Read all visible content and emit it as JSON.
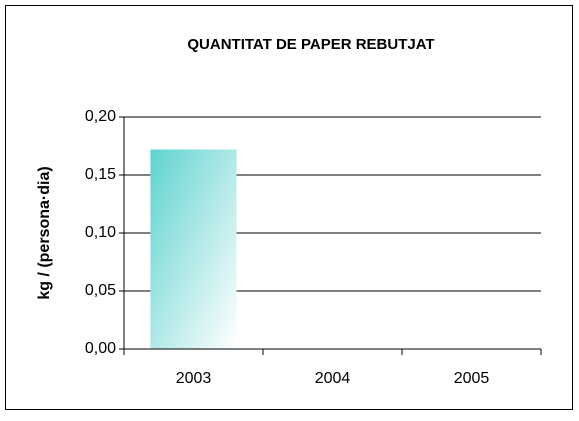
{
  "chart_data": {
    "type": "bar",
    "title": "QUANTITAT DE PAPER REBUTJAT",
    "y_label": "kg / (persona·dia)",
    "categories": [
      "2003",
      "2004",
      "2005"
    ],
    "values": [
      0.172,
      null,
      null
    ],
    "color": "#5fd3cf",
    "ylim": [
      0,
      0.2
    ],
    "yticks": [
      {
        "value": 0,
        "label": "0,00"
      },
      {
        "value": 0.05,
        "label": "0,05"
      },
      {
        "value": 0.1,
        "label": "0,10"
      },
      {
        "value": 0.15,
        "label": "0,15"
      },
      {
        "value": 0.2,
        "label": "0,20"
      }
    ],
    "grid": true
  }
}
